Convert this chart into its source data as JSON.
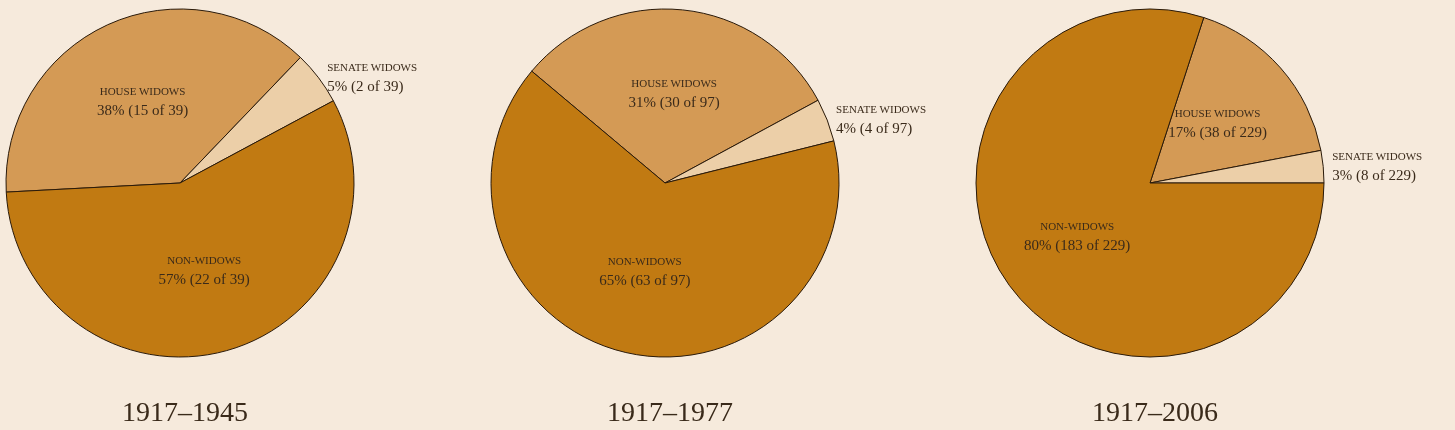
{
  "chart_data": [
    {
      "type": "pie",
      "title": "1917–1945",
      "categories": [
        "HOUSE WIDOWS",
        "SENATE WIDOWS",
        "NON-WIDOWS"
      ],
      "values": [
        38,
        5,
        57
      ],
      "value_labels": [
        "38% (15 of 39)",
        "5% (2 of 39)",
        "57% (22 of 39)"
      ],
      "colors": [
        "#d49a55",
        "#eccfa8",
        "#c17a12"
      ],
      "legend": false
    },
    {
      "type": "pie",
      "title": "1917–1977",
      "categories": [
        "HOUSE WIDOWS",
        "SENATE WIDOWS",
        "NON-WIDOWS"
      ],
      "values": [
        31,
        4,
        65
      ],
      "value_labels": [
        "31% (30 of 97)",
        "4% (4 of 97)",
        "65% (63 of 97)"
      ],
      "colors": [
        "#d49a55",
        "#eccfa8",
        "#c17a12"
      ],
      "legend": false
    },
    {
      "type": "pie",
      "title": "1917–2006",
      "categories": [
        "HOUSE WIDOWS",
        "SENATE WIDOWS",
        "NON-WIDOWS"
      ],
      "values": [
        17,
        3,
        80
      ],
      "value_labels": [
        "17% (38 of 229)",
        "3% (8 of 229)",
        "80% (183 of 229)"
      ],
      "colors": [
        "#d49a55",
        "#eccfa8",
        "#c17a12"
      ],
      "legend": false
    }
  ]
}
